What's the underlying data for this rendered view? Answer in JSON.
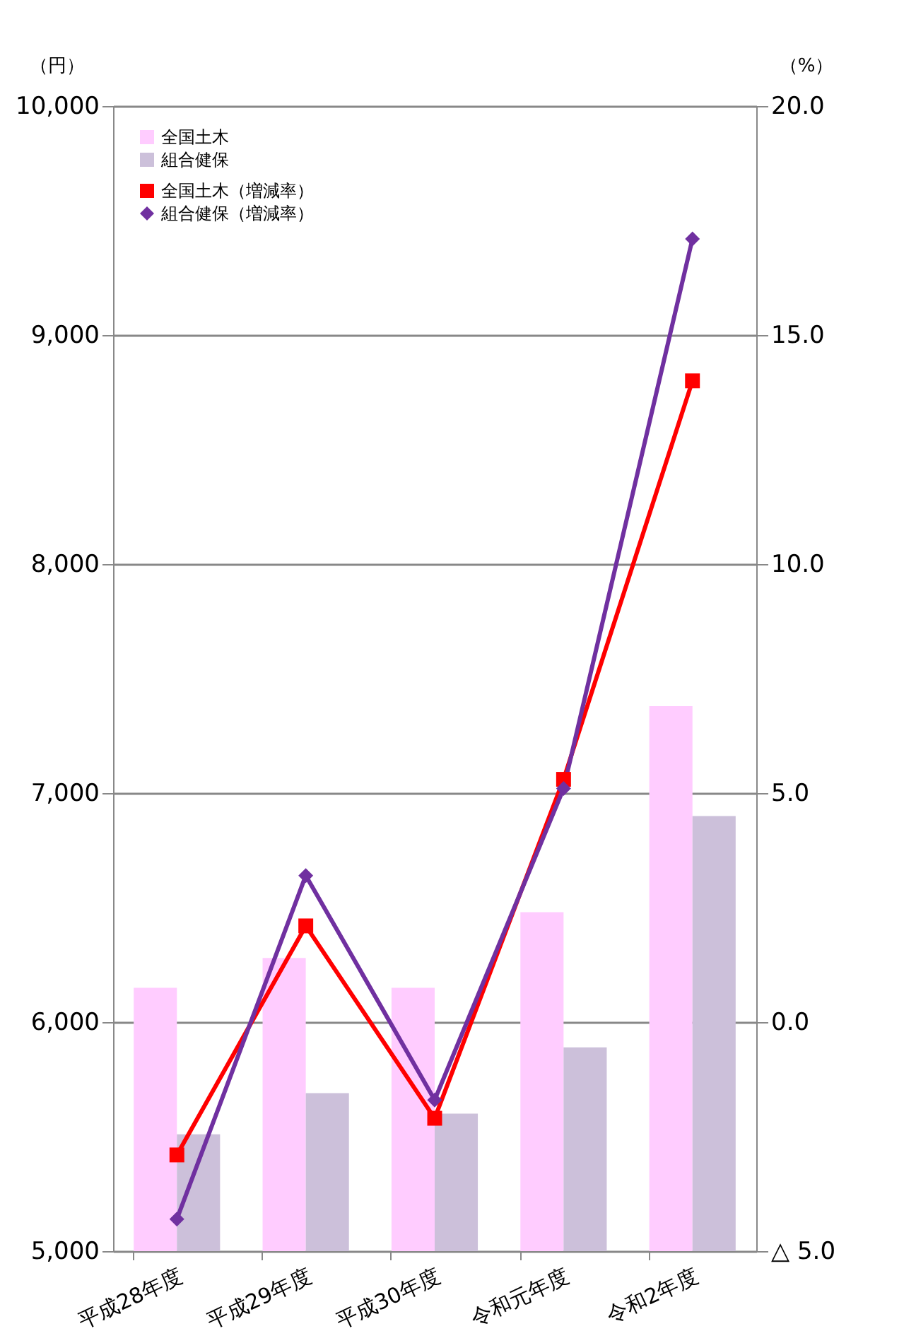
{
  "chart_data": {
    "type": "bar",
    "categories": [
      "平成28年度",
      "平成29年度",
      "平成30年度",
      "令和元年度",
      "令和2年度"
    ],
    "series": [
      {
        "name": "全国土木",
        "color": "#ffccff",
        "values": [
          6150,
          6280,
          6150,
          6480,
          7380
        ]
      },
      {
        "name": "組合健保",
        "color": "#ccc0da",
        "values": [
          5510,
          5690,
          5600,
          5890,
          6900
        ]
      },
      {
        "name": "全国土木（増減率）",
        "type": "line",
        "axis": "y2",
        "color": "#ff0000",
        "marker": "square",
        "values": [
          -2.9,
          2.1,
          -2.1,
          5.3,
          14.0
        ]
      },
      {
        "name": "組合健保（増減率）",
        "type": "line",
        "axis": "y2",
        "color": "#7030a0",
        "marker": "diamond",
        "values": [
          -4.3,
          3.2,
          -1.7,
          5.1,
          17.1
        ]
      }
    ],
    "ylabel": "（円）",
    "y2label": "（%）",
    "ylim": [
      5000,
      10000
    ],
    "yticks": [
      {
        "value": 5000,
        "label": "5,000"
      },
      {
        "value": 6000,
        "label": "6,000"
      },
      {
        "value": 7000,
        "label": "7,000"
      },
      {
        "value": 8000,
        "label": "8,000"
      },
      {
        "value": 9000,
        "label": "9,000"
      },
      {
        "value": 10000,
        "label": "10,000"
      }
    ],
    "y2lim": [
      -5,
      20
    ],
    "y2ticks": [
      {
        "value": -5,
        "label": "△ 5.0"
      },
      {
        "value": 0,
        "label": "0.0"
      },
      {
        "value": 5,
        "label": "5.0"
      },
      {
        "value": 10,
        "label": "10.0"
      },
      {
        "value": 15,
        "label": "15.0"
      },
      {
        "value": 20,
        "label": "20.0"
      }
    ],
    "grid": "y",
    "legend": "top left"
  }
}
